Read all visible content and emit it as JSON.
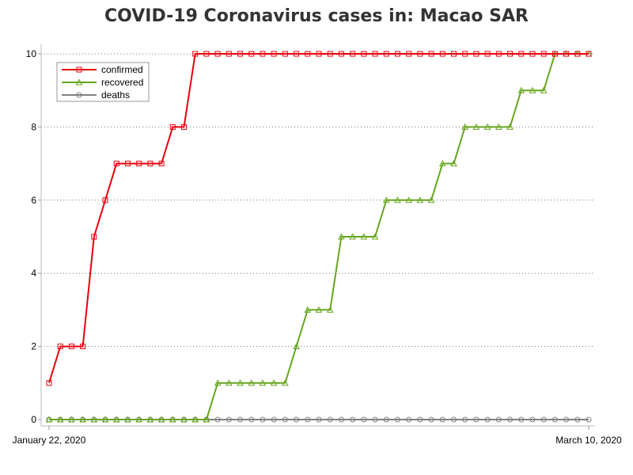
{
  "chart_data": {
    "type": "line",
    "title": "COVID-19 Coronavirus cases in: Macao SAR",
    "xlabel": "",
    "ylabel": "",
    "x_tick_labels": [
      "January 22, 2020",
      "March 10, 2020"
    ],
    "x": [
      "2020-01-22",
      "2020-01-23",
      "2020-01-24",
      "2020-01-25",
      "2020-01-26",
      "2020-01-27",
      "2020-01-28",
      "2020-01-29",
      "2020-01-30",
      "2020-01-31",
      "2020-02-01",
      "2020-02-02",
      "2020-02-03",
      "2020-02-04",
      "2020-02-05",
      "2020-02-06",
      "2020-02-07",
      "2020-02-08",
      "2020-02-09",
      "2020-02-10",
      "2020-02-11",
      "2020-02-12",
      "2020-02-13",
      "2020-02-14",
      "2020-02-15",
      "2020-02-16",
      "2020-02-17",
      "2020-02-18",
      "2020-02-19",
      "2020-02-20",
      "2020-02-21",
      "2020-02-22",
      "2020-02-23",
      "2020-02-24",
      "2020-02-25",
      "2020-02-26",
      "2020-02-27",
      "2020-02-28",
      "2020-02-29",
      "2020-03-01",
      "2020-03-02",
      "2020-03-03",
      "2020-03-04",
      "2020-03-05",
      "2020-03-06",
      "2020-03-07",
      "2020-03-08",
      "2020-03-09",
      "2020-03-10"
    ],
    "ylim": [
      0,
      10
    ],
    "y_ticks": [
      0,
      2,
      4,
      6,
      8,
      10
    ],
    "grid": "horizontal dotted",
    "legend_position": "top-left",
    "series": [
      {
        "name": "confirmed",
        "color": "#e8000b",
        "marker": "square",
        "values": [
          1,
          2,
          2,
          2,
          5,
          6,
          7,
          7,
          7,
          7,
          7,
          8,
          8,
          10,
          10,
          10,
          10,
          10,
          10,
          10,
          10,
          10,
          10,
          10,
          10,
          10,
          10,
          10,
          10,
          10,
          10,
          10,
          10,
          10,
          10,
          10,
          10,
          10,
          10,
          10,
          10,
          10,
          10,
          10,
          10,
          10,
          10,
          10,
          10
        ]
      },
      {
        "name": "recovered",
        "color": "#66a61e",
        "marker": "triangle",
        "values": [
          0,
          0,
          0,
          0,
          0,
          0,
          0,
          0,
          0,
          0,
          0,
          0,
          0,
          0,
          0,
          1,
          1,
          1,
          1,
          1,
          1,
          1,
          2,
          3,
          3,
          3,
          5,
          5,
          5,
          5,
          6,
          6,
          6,
          6,
          6,
          7,
          7,
          8,
          8,
          8,
          8,
          8,
          9,
          9,
          9,
          10,
          10,
          10,
          10
        ]
      },
      {
        "name": "deaths",
        "color": "#808080",
        "marker": "circle",
        "values": [
          0,
          0,
          0,
          0,
          0,
          0,
          0,
          0,
          0,
          0,
          0,
          0,
          0,
          0,
          0,
          0,
          0,
          0,
          0,
          0,
          0,
          0,
          0,
          0,
          0,
          0,
          0,
          0,
          0,
          0,
          0,
          0,
          0,
          0,
          0,
          0,
          0,
          0,
          0,
          0,
          0,
          0,
          0,
          0,
          0,
          0,
          0,
          0,
          0
        ]
      }
    ]
  }
}
